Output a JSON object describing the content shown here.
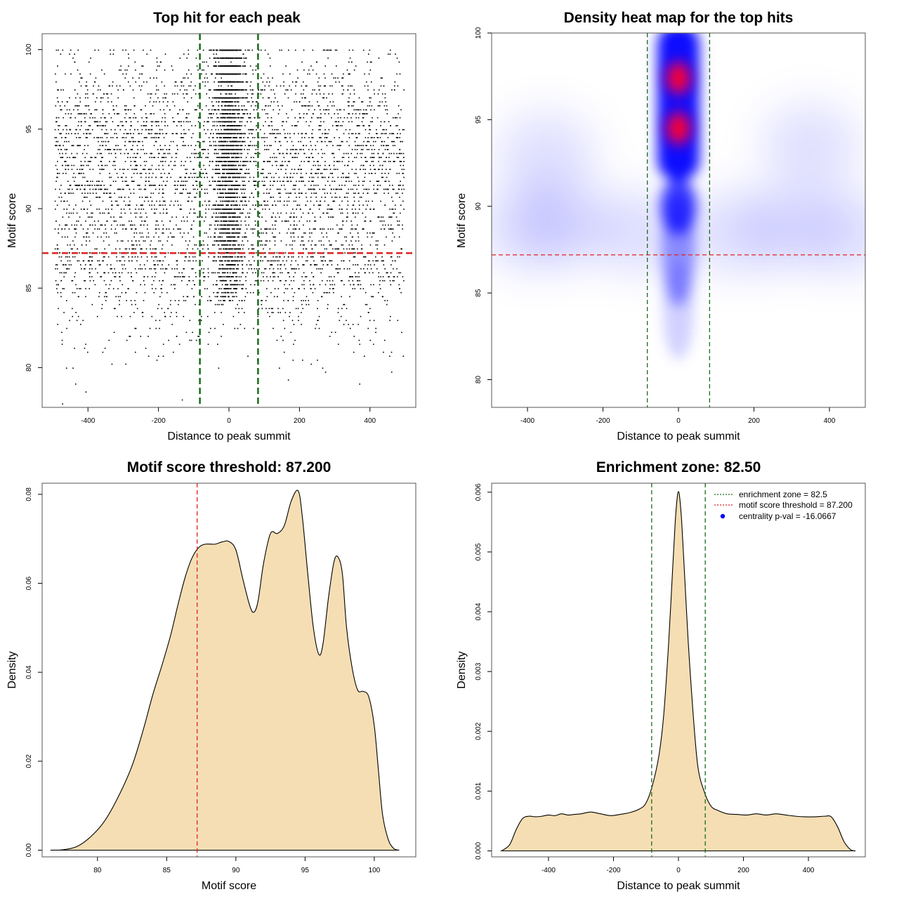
{
  "colors": {
    "fill": "#f5deb3",
    "threshold_line": "#dd2222",
    "zone_line": "#1a6b1a",
    "points": "#000000",
    "heat_low": "#ffffff",
    "heat_mid": "#0000ff",
    "heat_high": "#ff0000"
  },
  "chart_data": [
    {
      "id": "scatter",
      "type": "scatter",
      "title": "Top hit for each peak",
      "xlabel": "Distance to peak summit",
      "ylabel": "Motif score",
      "xlim": [
        -530,
        530
      ],
      "ylim": [
        77.5,
        101
      ],
      "xticks": [
        -400,
        -200,
        0,
        200,
        400
      ],
      "yticks": [
        80,
        85,
        90,
        95,
        100
      ],
      "hline": 87.2,
      "vlines": [
        -82.5,
        82.5
      ],
      "point_density": {
        "background_x_range": [
          -495,
          495
        ],
        "center_sd": 20,
        "score_levels_top": [
          100,
          99.5,
          99,
          98.5,
          98,
          97.5,
          97
        ]
      }
    },
    {
      "id": "heatmap",
      "type": "heatmap",
      "title": "Density heat map for the top hits",
      "xlabel": "Distance to peak summit",
      "ylabel": "Motif score",
      "xlim": [
        -495,
        495
      ],
      "ylim": [
        78.4,
        100
      ],
      "xticks": [
        -400,
        -200,
        0,
        200,
        400
      ],
      "yticks": [
        80,
        85,
        90,
        95,
        100
      ],
      "hline": 87.2,
      "vlines": [
        -82.5,
        82.5
      ],
      "hotspots": [
        {
          "x": 0,
          "y": 97.4,
          "level": "max"
        },
        {
          "x": 0,
          "y": 94.5,
          "level": "max"
        }
      ]
    },
    {
      "id": "score_density",
      "type": "area",
      "title": "Motif score threshold: 87.200",
      "xlabel": "Motif score",
      "ylabel": "Density",
      "xlim": [
        76,
        103
      ],
      "ylim": [
        -0.0015,
        0.0825
      ],
      "xticks": [
        80,
        85,
        90,
        95,
        100
      ],
      "yticks": [
        0.0,
        0.02,
        0.04,
        0.06,
        0.08
      ],
      "ytick_labels": [
        "0.00",
        "0.02",
        "0.04",
        "0.06",
        "0.08"
      ],
      "vline": 87.2,
      "x": [
        76.6,
        77.5,
        78.5,
        79.5,
        80.5,
        81.5,
        82.5,
        83.3,
        84,
        84.7,
        85.3,
        85.8,
        86.3,
        86.8,
        87.3,
        87.8,
        88.5,
        89,
        89.5,
        90,
        90.5,
        91,
        91.3,
        91.6,
        92,
        92.5,
        93,
        93.5,
        94,
        94.5,
        94.8,
        95.2,
        95.6,
        96,
        96.3,
        96.7,
        97.1,
        97.4,
        97.7,
        98,
        98.4,
        98.8,
        99.2,
        99.6,
        100,
        100.3,
        100.6,
        101,
        101.4,
        101.8
      ],
      "y": [
        0.0,
        0.0001,
        0.0008,
        0.003,
        0.0065,
        0.012,
        0.019,
        0.027,
        0.035,
        0.042,
        0.0485,
        0.055,
        0.061,
        0.0655,
        0.068,
        0.0688,
        0.0688,
        0.0693,
        0.0694,
        0.0675,
        0.061,
        0.055,
        0.0535,
        0.056,
        0.0645,
        0.0712,
        0.0712,
        0.073,
        0.0785,
        0.0808,
        0.075,
        0.062,
        0.05,
        0.044,
        0.0465,
        0.057,
        0.065,
        0.0658,
        0.062,
        0.05,
        0.041,
        0.036,
        0.0357,
        0.0345,
        0.028,
        0.018,
        0.008,
        0.0025,
        0.0004,
        0.0
      ]
    },
    {
      "id": "distance_density",
      "type": "area",
      "title": "Enrichment zone: 82.50",
      "xlabel": "Distance to peak summit",
      "ylabel": "Density",
      "xlim": [
        -575,
        575
      ],
      "ylim": [
        -0.0001,
        0.00615
      ],
      "xticks": [
        -400,
        -200,
        0,
        200,
        400
      ],
      "yticks": [
        0.0,
        0.001,
        0.002,
        0.003,
        0.004,
        0.005,
        0.006
      ],
      "ytick_labels": [
        "0.000",
        "0.001",
        "0.002",
        "0.003",
        "0.004",
        "0.005",
        "0.006"
      ],
      "vlines": [
        -82.5,
        82.5
      ],
      "x": [
        -545,
        -520,
        -500,
        -480,
        -460,
        -440,
        -420,
        -400,
        -380,
        -360,
        -340,
        -320,
        -300,
        -270,
        -240,
        -210,
        -180,
        -150,
        -120,
        -100,
        -80,
        -60,
        -45,
        -30,
        -20,
        -10,
        -4,
        0,
        4,
        10,
        20,
        30,
        45,
        60,
        80,
        100,
        120,
        150,
        180,
        210,
        240,
        270,
        300,
        330,
        360,
        390,
        420,
        450,
        470,
        490,
        510,
        530,
        545
      ],
      "y": [
        0.0,
        0.0001,
        0.00035,
        0.00054,
        0.00058,
        0.00057,
        0.00058,
        0.0006,
        0.00059,
        0.00062,
        0.0006,
        0.00061,
        0.00062,
        0.00065,
        0.00062,
        0.00059,
        0.00061,
        0.00064,
        0.0007,
        0.0008,
        0.0011,
        0.0016,
        0.0023,
        0.0035,
        0.0045,
        0.0055,
        0.0059,
        0.00601,
        0.0059,
        0.0055,
        0.0045,
        0.0035,
        0.0023,
        0.0014,
        0.00098,
        0.00075,
        0.00068,
        0.00062,
        0.00061,
        0.0006,
        0.00062,
        0.0006,
        0.00062,
        0.0006,
        0.00058,
        0.00057,
        0.00057,
        0.00058,
        0.00057,
        0.0004,
        0.00015,
        2e-05,
        0.0
      ],
      "legend": {
        "position": "top-right",
        "entries": [
          {
            "label": "enrichment zone = 82.5",
            "style": "dotted-green"
          },
          {
            "label": "motif score threshold = 87.200",
            "style": "dotted-red"
          },
          {
            "label": "centrality p-val = -16.0667",
            "style": "blue-dot"
          }
        ]
      }
    }
  ]
}
